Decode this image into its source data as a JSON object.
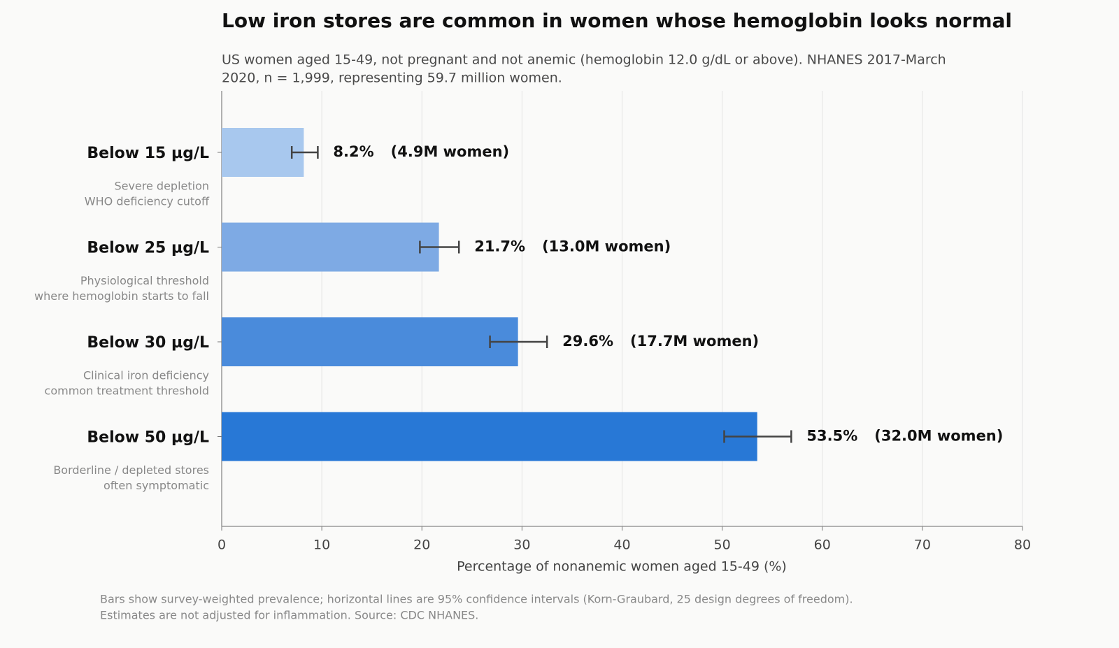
{
  "chart_data": {
    "type": "bar",
    "orientation": "horizontal",
    "title": "Low iron stores are common in women whose hemoglobin looks normal",
    "subtitle": [
      "US women aged 15-49, not pregnant and not anemic (hemoglobin 12.0 g/dL or above). NHANES 2017-March",
      "2020, n = 1,999, representing 59.7 million women."
    ],
    "categories": [
      "Below 15 µg/L",
      "Below 25 µg/L",
      "Below 30 µg/L",
      "Below 50 µg/L"
    ],
    "sublabels": [
      [
        "Severe depletion",
        "WHO deficiency cutoff"
      ],
      [
        "Physiological threshold",
        "where hemoglobin starts to fall"
      ],
      [
        "Clinical iron deficiency",
        "common treatment threshold"
      ],
      [
        "Borderline / depleted stores",
        "often symptomatic"
      ]
    ],
    "values": [
      8.2,
      21.7,
      29.6,
      53.5
    ],
    "value_labels": [
      "8.2%",
      "21.7%",
      "29.6%",
      "53.5%"
    ],
    "ci_low": [
      7.0,
      19.8,
      26.8,
      50.2
    ],
    "ci_high": [
      9.6,
      23.7,
      32.5,
      56.9
    ],
    "women_millions": [
      4.9,
      13.0,
      17.7,
      32.0
    ],
    "women_labels": [
      "(4.9M women)",
      "(13.0M women)",
      "(17.7M women)",
      "(32.0M women)"
    ],
    "colors": [
      "#a8c8ee",
      "#7eaae4",
      "#4a8bdb",
      "#2878d6"
    ],
    "xlabel": "Percentage of nonanemic women aged 15-49 (%)",
    "xlim": [
      0,
      80
    ],
    "xticks": [
      0,
      10,
      20,
      30,
      40,
      50,
      60,
      70,
      80
    ],
    "grid": true,
    "footnote": [
      "Bars show survey-weighted prevalence; horizontal lines are 95% confidence intervals (Korn-Graubard, 25 design degrees of freedom).",
      "Estimates are not adjusted for inflammation. Source: CDC NHANES."
    ]
  }
}
